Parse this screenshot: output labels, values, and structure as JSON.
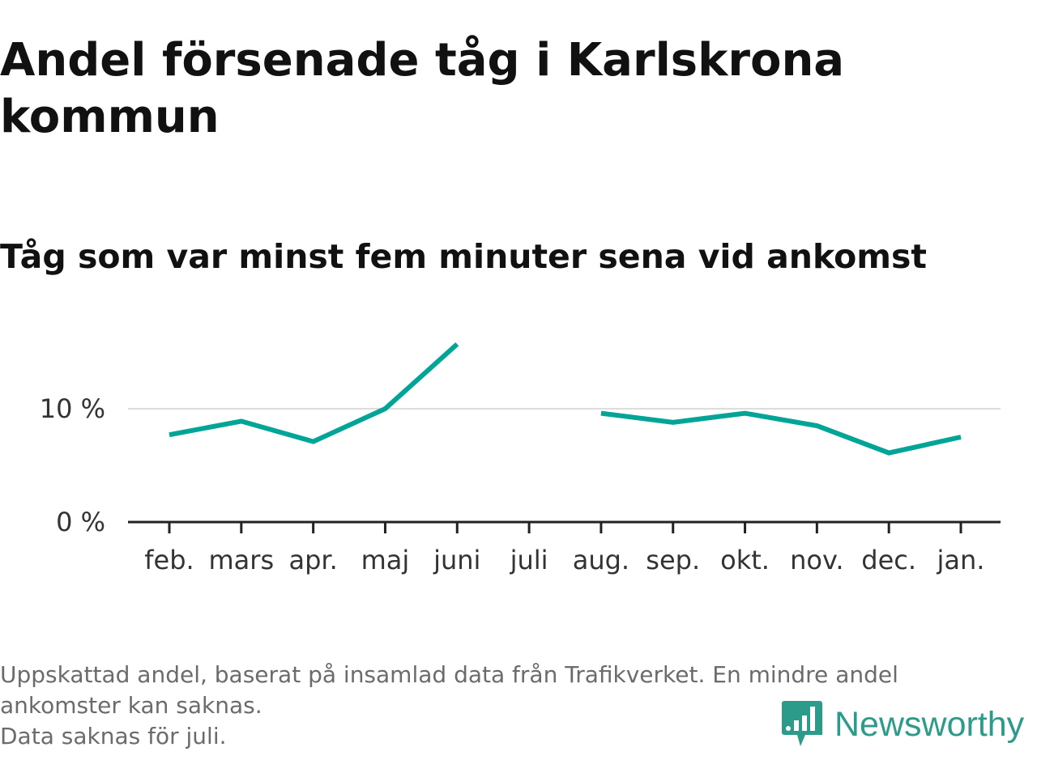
{
  "title": "Andel försenade tåg i Karlskrona kommun",
  "subtitle": "Tåg som var minst fem minuter sena vid ankomst",
  "footnote": {
    "line1": "Uppskattad andel, baserat på insamlad data från Trafikverket. En mindre andel",
    "line2": "ankomster kan saknas.",
    "line3": "Data saknas för juli."
  },
  "brand": {
    "name": "Newsworthy",
    "icon": "newsworthy-logo-icon",
    "color": "#2c9b8a"
  },
  "chart_data": {
    "type": "line",
    "categories": [
      "feb.",
      "mars",
      "apr.",
      "maj",
      "juni",
      "juli",
      "aug.",
      "sep.",
      "okt.",
      "nov.",
      "dec.",
      "jan."
    ],
    "series": [
      {
        "values": [
          7.7,
          8.9,
          7.1,
          10.0,
          15.7,
          null,
          9.6,
          8.8,
          9.6,
          8.5,
          6.1,
          7.5
        ],
        "color": "#00a597"
      }
    ],
    "yticks": [
      {
        "value": 0,
        "label": "0 %"
      },
      {
        "value": 10,
        "label": "10 %"
      }
    ],
    "ylim": [
      0,
      16
    ],
    "xlabel": "",
    "ylabel": "",
    "grid": true,
    "gridline_color": "#dddddd",
    "axis_color": "#222222"
  }
}
